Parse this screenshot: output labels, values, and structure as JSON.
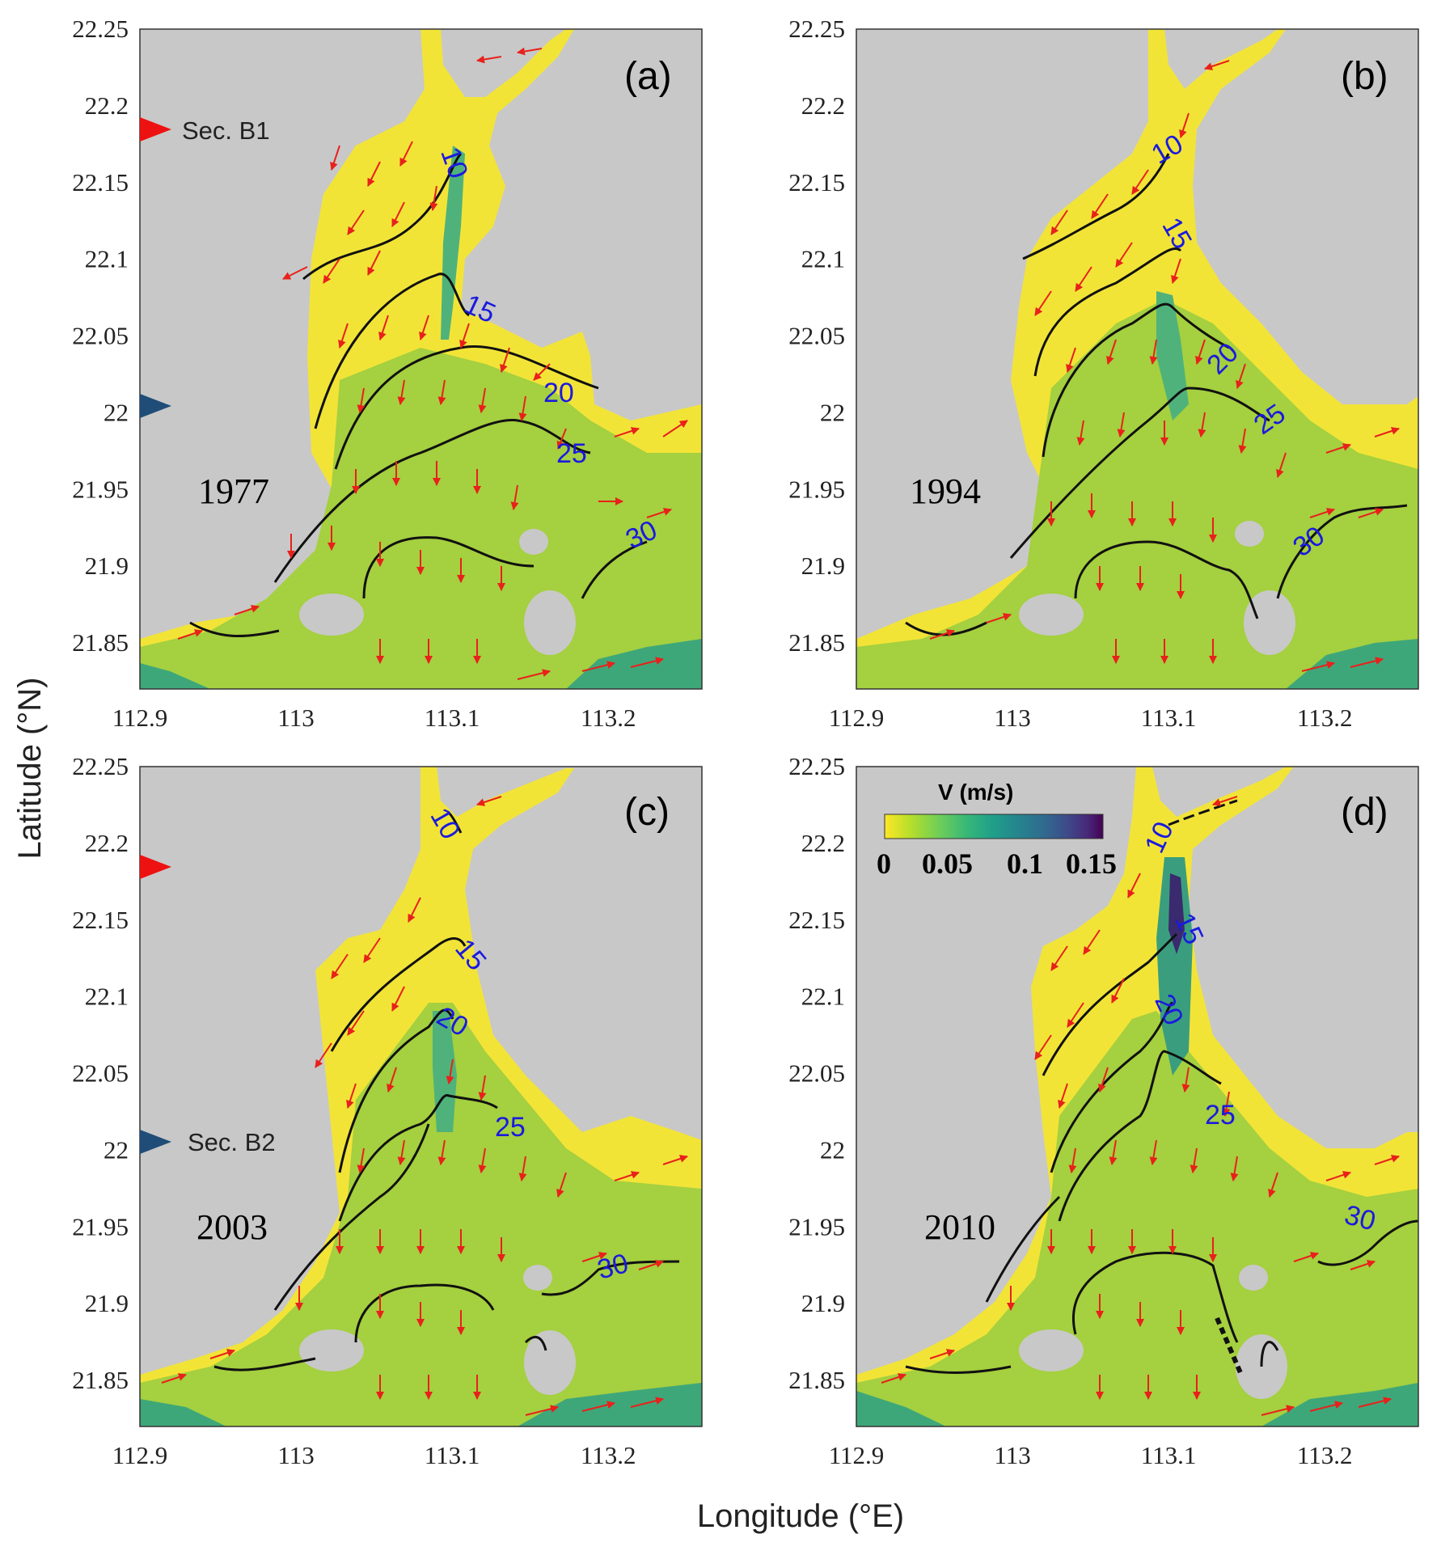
{
  "figure": {
    "xlabel": "Longitude (°E)",
    "ylabel": "Latitude (°N)",
    "x_ticks": [
      "112.9",
      "113",
      "113.1",
      "113.2"
    ],
    "y_ticks": [
      "22.25",
      "22.2",
      "22.15",
      "22.1",
      "22.05",
      "22",
      "21.95",
      "21.9",
      "21.85"
    ],
    "x_tick_values": [
      112.9,
      113.0,
      113.1,
      113.2
    ],
    "y_tick_values": [
      22.25,
      22.2,
      22.15,
      22.1,
      22.05,
      22.0,
      21.95,
      21.9,
      21.85
    ],
    "xlim": [
      112.9,
      113.26
    ],
    "ylim": [
      21.82,
      22.25
    ],
    "colors": {
      "land": "#c8c8c8",
      "water_low": "#f2e437",
      "water_mid": "#9fcf3f",
      "water_high": "#3fae76",
      "arrows": "#e8211b",
      "contours": "#111111",
      "contour_labels": "#1a1adf",
      "sec_b1_marker": "#ee1111",
      "sec_b2_marker": "#1f4d78"
    }
  },
  "panels": [
    {
      "label": "(a)",
      "year": "1977",
      "contour_labels": [
        "10",
        "15",
        "20",
        "25",
        "30"
      ]
    },
    {
      "label": "(b)",
      "year": "1994",
      "contour_labels": [
        "10",
        "15",
        "20",
        "25",
        "30"
      ]
    },
    {
      "label": "(c)",
      "year": "2003",
      "contour_labels": [
        "10",
        "15",
        "20",
        "25",
        "30"
      ]
    },
    {
      "label": "(d)",
      "year": "2010",
      "contour_labels": [
        "10",
        "15",
        "20",
        "25",
        "30"
      ]
    }
  ],
  "sections": {
    "b1_label": "Sec. B1",
    "b2_label": "Sec. B2",
    "b1_latitude": 22.18,
    "b2_latitude": 22.005
  },
  "colorbar": {
    "title": "V (m/s)",
    "ticks": [
      "0",
      "0.05",
      "0.1",
      "0.15"
    ],
    "tick_values": [
      0,
      0.05,
      0.1,
      0.15
    ],
    "gradient": [
      "#fde725",
      "#b5de2b",
      "#6ece58",
      "#35b779",
      "#1f9e89",
      "#26828e",
      "#31688e",
      "#3e4989",
      "#482878",
      "#440154"
    ]
  }
}
